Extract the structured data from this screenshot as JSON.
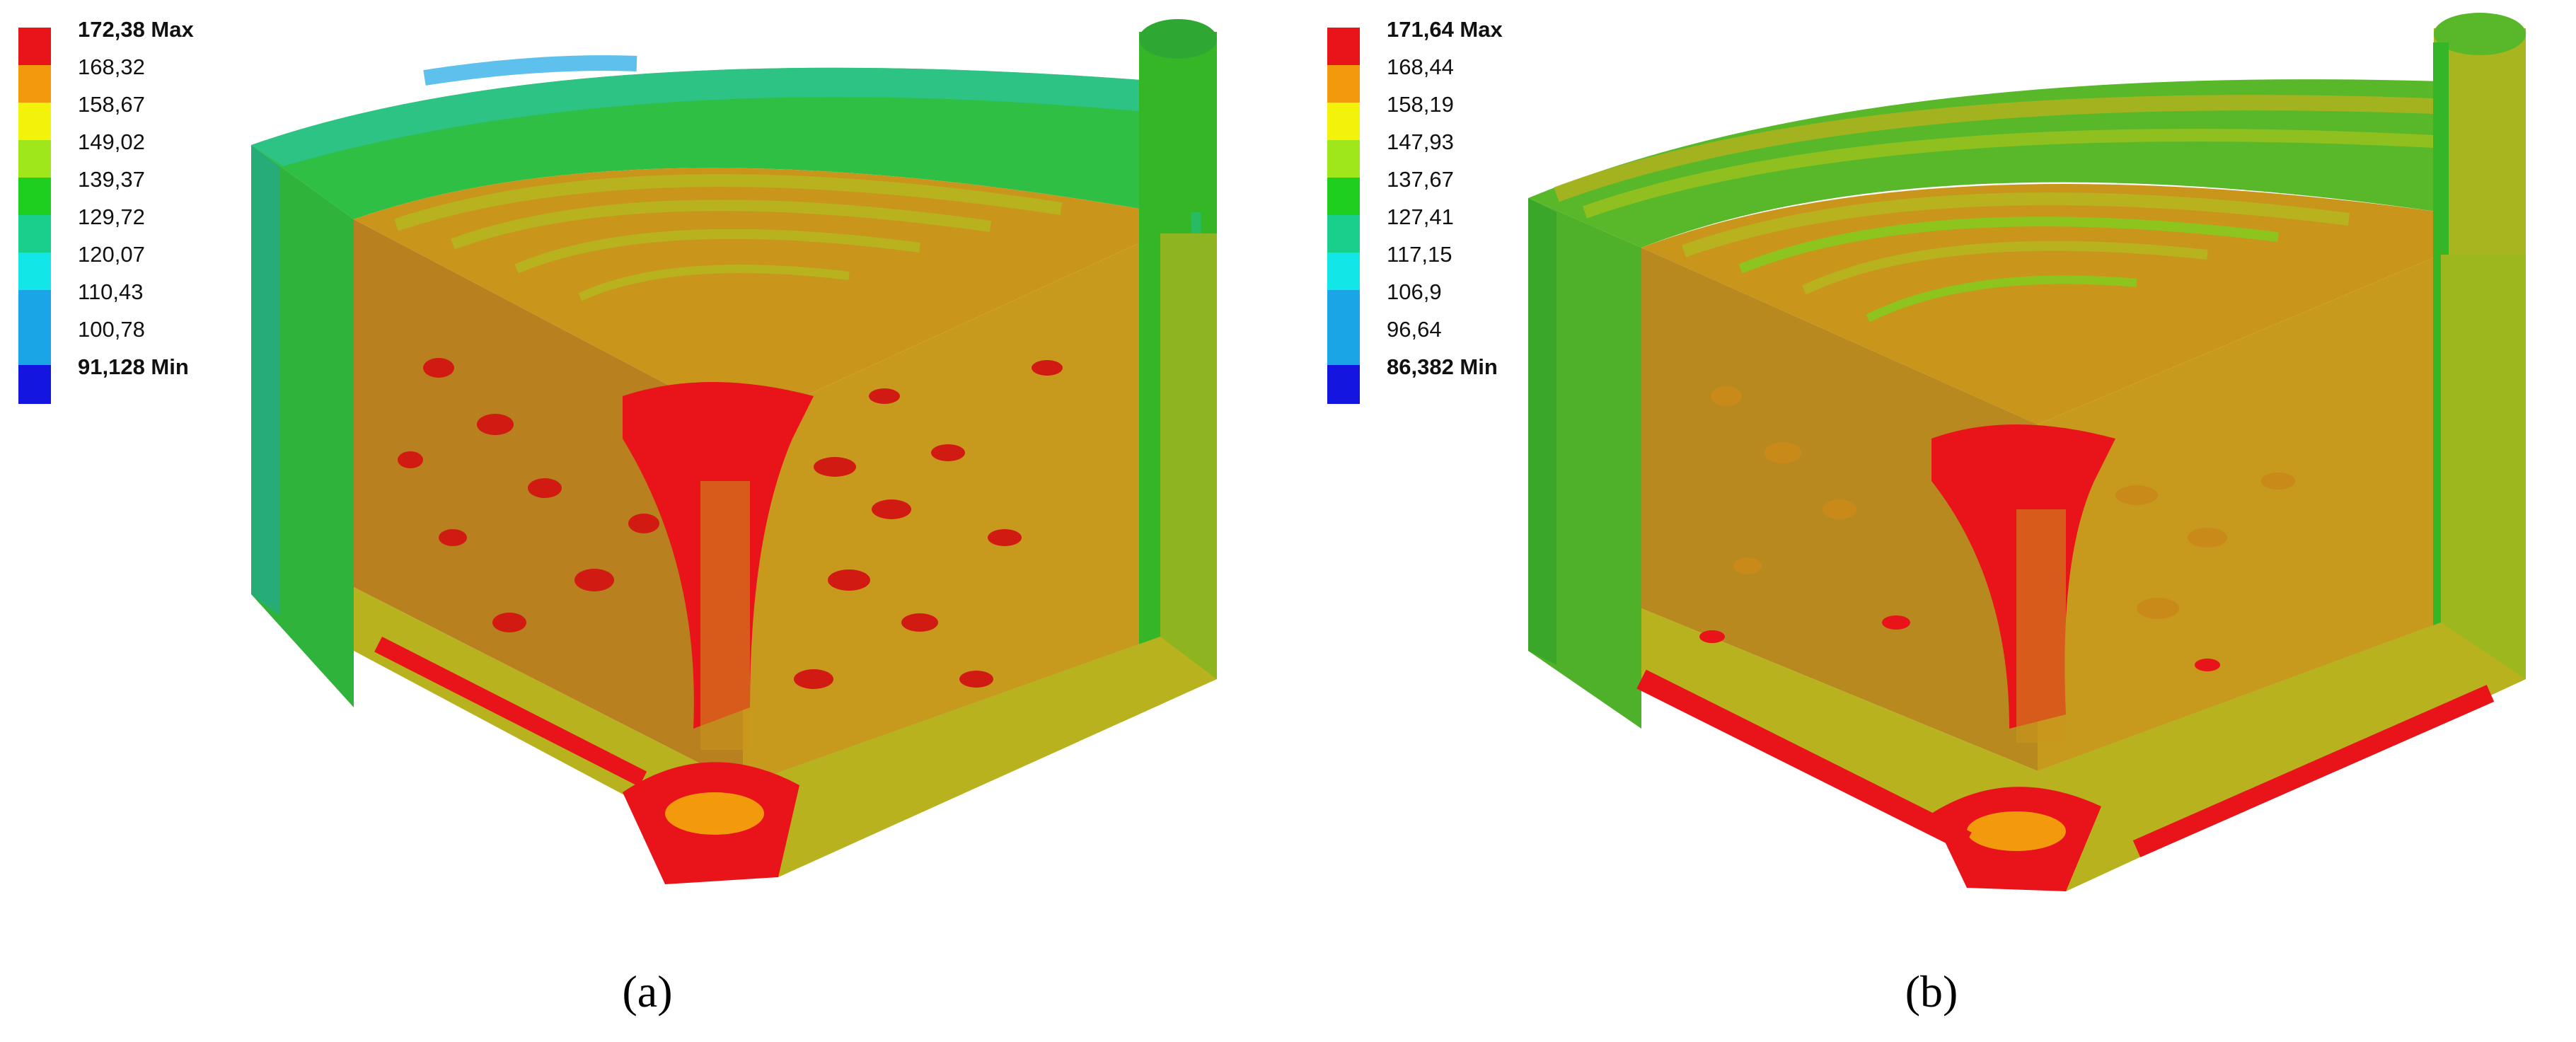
{
  "panels": [
    {
      "caption": "(a)",
      "legend": {
        "max_label": "172,38 Max",
        "levels": [
          "168,32",
          "158,67",
          "149,02",
          "139,37",
          "129,72",
          "120,07",
          "110,43",
          "100,78"
        ],
        "min_label": "91,128 Min"
      }
    },
    {
      "caption": "(b)",
      "legend": {
        "max_label": "171,64 Max",
        "levels": [
          "168,44",
          "158,19",
          "147,93",
          "137,67",
          "127,41",
          "117,15",
          "106,9",
          "96,64"
        ],
        "min_label": "86,382 Min"
      }
    }
  ],
  "colors": {
    "scale": [
      "#e8141a",
      "#f29a0c",
      "#f2f20a",
      "#9fe61a",
      "#1fcf1f",
      "#18cf8c",
      "#12e6e6",
      "#1aa6e6",
      "#1515e0"
    ],
    "red": "#e8141a",
    "orange_brown": "#c8921a",
    "olive": "#b7b21e",
    "green": "#34b626",
    "teal": "#1fbf8a"
  }
}
